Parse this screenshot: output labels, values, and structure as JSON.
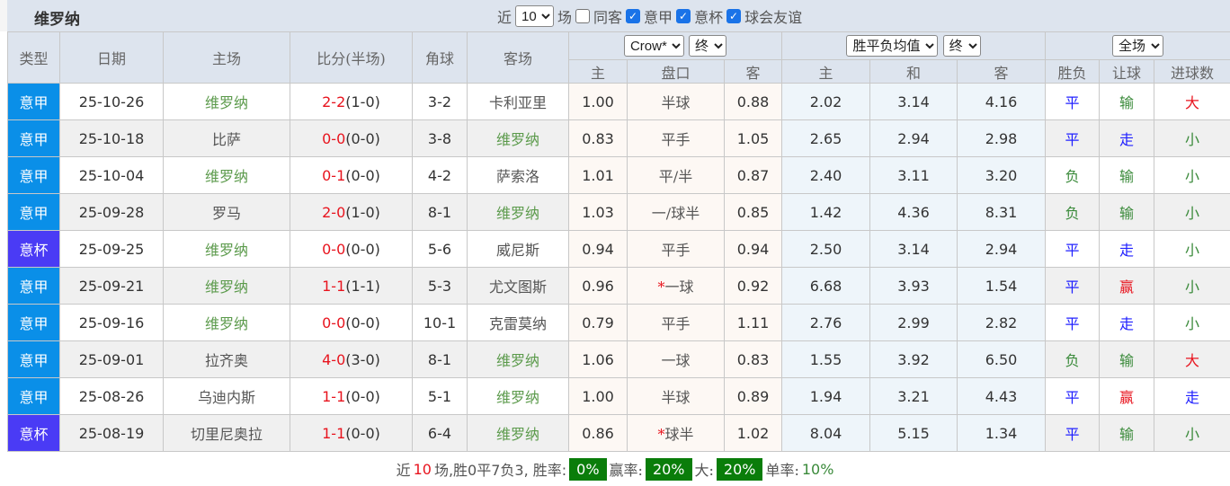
{
  "title": "维罗纳",
  "filters": {
    "near_label": "近",
    "count": "10",
    "games_label": "场",
    "same_label": "同客",
    "same_checked": false,
    "leagues": [
      {
        "label": "意甲",
        "checked": true
      },
      {
        "label": "意杯",
        "checked": true
      },
      {
        "label": "球会友谊",
        "checked": true
      }
    ]
  },
  "header": {
    "type": "类型",
    "date": "日期",
    "home": "主场",
    "score": "比分(半场)",
    "corner": "角球",
    "away": "客场",
    "ah_company": "Crow*",
    "ah_stage": "终",
    "eu_type": "胜平负均值",
    "eu_stage": "终",
    "period": "全场",
    "sub": [
      "主",
      "盘口",
      "客",
      "主",
      "和",
      "客",
      "胜负",
      "让球",
      "进球数"
    ]
  },
  "colors": {
    "league_serie_a": "#0a8fe8",
    "league_cup": "#4a3bf5",
    "win": "#e8141e",
    "draw": "#2020ff",
    "loss": "#3a8a3a"
  },
  "rows": [
    {
      "type": "意甲",
      "date": "25-10-26",
      "home": "维罗纳",
      "ft": "2-2",
      "ht": "(1-0)",
      "corner": "3-2",
      "away": "卡利亚里",
      "ah_h": "1.00",
      "line": "半球",
      "ah_a": "0.88",
      "eu_h": "2.02",
      "eu_d": "3.14",
      "eu_a": "4.16",
      "res": "平",
      "handicap": "输",
      "ou": "大"
    },
    {
      "type": "意甲",
      "date": "25-10-18",
      "home": "比萨",
      "ft": "0-0",
      "ht": "(0-0)",
      "corner": "3-8",
      "away": "维罗纳",
      "ah_h": "0.83",
      "line": "平手",
      "ah_a": "1.05",
      "eu_h": "2.65",
      "eu_d": "2.94",
      "eu_a": "2.98",
      "res": "平",
      "handicap": "走",
      "ou": "小"
    },
    {
      "type": "意甲",
      "date": "25-10-04",
      "home": "维罗纳",
      "ft": "0-1",
      "ht": "(0-0)",
      "corner": "4-2",
      "away": "萨索洛",
      "ah_h": "1.01",
      "line": "平/半",
      "ah_a": "0.87",
      "eu_h": "2.40",
      "eu_d": "3.11",
      "eu_a": "3.20",
      "res": "负",
      "handicap": "输",
      "ou": "小"
    },
    {
      "type": "意甲",
      "date": "25-09-28",
      "home": "罗马",
      "ft": "2-0",
      "ht": "(1-0)",
      "corner": "8-1",
      "away": "维罗纳",
      "ah_h": "1.03",
      "line": "一/球半",
      "ah_a": "0.85",
      "eu_h": "1.42",
      "eu_d": "4.36",
      "eu_a": "8.31",
      "res": "负",
      "handicap": "输",
      "ou": "小"
    },
    {
      "type": "意杯",
      "date": "25-09-25",
      "home": "维罗纳",
      "ft": "0-0",
      "ht": "(0-0)",
      "corner": "5-6",
      "away": "威尼斯",
      "ah_h": "0.94",
      "line": "平手",
      "ah_a": "0.94",
      "eu_h": "2.50",
      "eu_d": "3.14",
      "eu_a": "2.94",
      "res": "平",
      "handicap": "走",
      "ou": "小"
    },
    {
      "type": "意甲",
      "date": "25-09-21",
      "home": "维罗纳",
      "ft": "1-1",
      "ht": "(1-1)",
      "corner": "5-3",
      "away": "尤文图斯",
      "ah_h": "0.96",
      "star": "*",
      "line": "一球",
      "ah_a": "0.92",
      "eu_h": "6.68",
      "eu_d": "3.93",
      "eu_a": "1.54",
      "res": "平",
      "handicap": "赢",
      "ou": "小"
    },
    {
      "type": "意甲",
      "date": "25-09-16",
      "home": "维罗纳",
      "ft": "0-0",
      "ht": "(0-0)",
      "corner": "10-1",
      "away": "克雷莫纳",
      "ah_h": "0.79",
      "line": "平手",
      "ah_a": "1.11",
      "eu_h": "2.76",
      "eu_d": "2.99",
      "eu_a": "2.82",
      "res": "平",
      "handicap": "走",
      "ou": "小"
    },
    {
      "type": "意甲",
      "date": "25-09-01",
      "home": "拉齐奥",
      "ft": "4-0",
      "ht": "(3-0)",
      "corner": "8-1",
      "away": "维罗纳",
      "ah_h": "1.06",
      "line": "一球",
      "ah_a": "0.83",
      "eu_h": "1.55",
      "eu_d": "3.92",
      "eu_a": "6.50",
      "res": "负",
      "handicap": "输",
      "ou": "大"
    },
    {
      "type": "意甲",
      "date": "25-08-26",
      "home": "乌迪内斯",
      "ft": "1-1",
      "ht": "(0-0)",
      "corner": "5-1",
      "away": "维罗纳",
      "ah_h": "1.00",
      "line": "半球",
      "ah_a": "0.89",
      "eu_h": "1.94",
      "eu_d": "3.21",
      "eu_a": "4.43",
      "res": "平",
      "handicap": "赢",
      "ou": "走"
    },
    {
      "type": "意杯",
      "date": "25-08-19",
      "home": "切里尼奥拉",
      "ft": "1-1",
      "ht": "(0-0)",
      "corner": "6-4",
      "away": "维罗纳",
      "ah_h": "0.86",
      "star": "*",
      "line": "球半",
      "ah_a": "1.02",
      "eu_h": "8.04",
      "eu_d": "5.15",
      "eu_a": "1.34",
      "res": "平",
      "handicap": "输",
      "ou": "小"
    }
  ],
  "footer": {
    "p1": "近",
    "n": "10",
    "p2": "场,胜0平7负3, 胜率:",
    "win_rate": "0%",
    "p3": "赢率:",
    "cover_rate": "20%",
    "p4": "大:",
    "over_rate": "20%",
    "p5": "单率:",
    "odd_rate": "10%"
  }
}
